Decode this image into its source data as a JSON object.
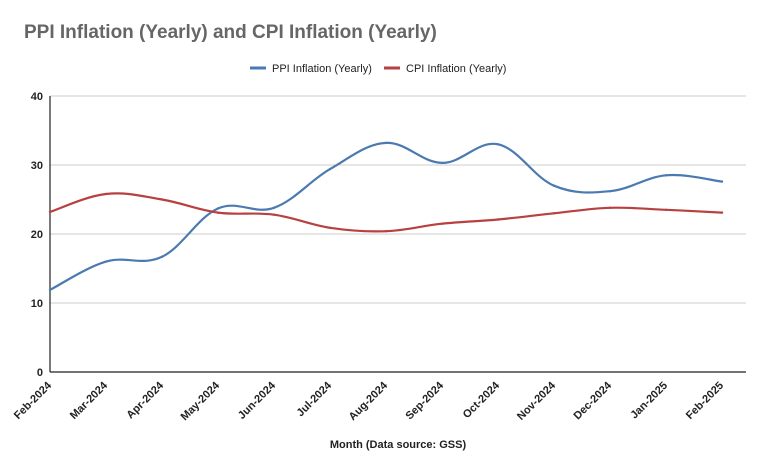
{
  "chart_data": {
    "type": "line",
    "title": "PPI Inflation (Yearly) and CPI Inflation (Yearly)",
    "xlabel": "Month (Data source: GSS)",
    "ylabel": "",
    "ylim": [
      0,
      40
    ],
    "yticks": [
      0,
      10,
      20,
      30,
      40
    ],
    "grid": true,
    "legend_position": "top-center",
    "categories": [
      "Feb-2024",
      "Mar-2024",
      "Apr-2024",
      "May-2024",
      "Jun-2024",
      "Jul-2024",
      "Aug-2024",
      "Sep-2024",
      "Oct-2024",
      "Nov-2024",
      "Dec-2024",
      "Jan-2025",
      "Feb-2025"
    ],
    "series": [
      {
        "name": "PPI Inflation (Yearly)",
        "color": "#4a7ab0",
        "values": [
          11.9,
          16.0,
          16.7,
          23.7,
          23.8,
          29.4,
          33.2,
          30.3,
          33.0,
          27.0,
          26.2,
          28.5,
          27.6
        ]
      },
      {
        "name": "CPI Inflation (Yearly)",
        "color": "#b84040",
        "values": [
          23.2,
          25.8,
          25.0,
          23.1,
          22.8,
          20.9,
          20.4,
          21.5,
          22.1,
          23.0,
          23.8,
          23.5,
          23.1
        ]
      }
    ]
  }
}
